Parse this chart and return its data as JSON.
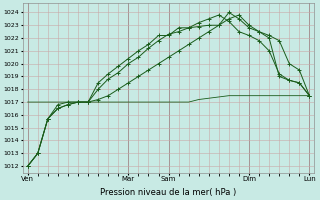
{
  "xlabel": "Pression niveau de la mer( hPa )",
  "bg_color": "#c8eae4",
  "grid_color_major": "#c8a8a8",
  "grid_color_minor": "#ddc8c8",
  "line_color": "#1a5c1a",
  "yticks": [
    1012,
    1013,
    1014,
    1015,
    1016,
    1017,
    1018,
    1019,
    1020,
    1021,
    1022,
    1023,
    1024
  ],
  "ylim": [
    1011.5,
    1024.7
  ],
  "series1_x": [
    0,
    1,
    2,
    3,
    4,
    5,
    6,
    7,
    8,
    9,
    10,
    11,
    12,
    13,
    14,
    15,
    16,
    17,
    18,
    19,
    20,
    21,
    22,
    23,
    24,
    25,
    26,
    27,
    28
  ],
  "series1_y": [
    1012.0,
    1013.0,
    1015.7,
    1016.5,
    1016.8,
    1017.0,
    1017.0,
    1018.5,
    1019.2,
    1019.8,
    1020.4,
    1021.0,
    1021.5,
    1022.2,
    1022.2,
    1022.8,
    1022.8,
    1022.9,
    1023.0,
    1023.0,
    1024.0,
    1023.5,
    1022.8,
    1022.5,
    1022.0,
    1019.0,
    1018.7,
    1018.5,
    1017.5
  ],
  "series2_x": [
    0,
    1,
    2,
    3,
    4,
    5,
    6,
    7,
    8,
    9,
    10,
    11,
    12,
    13,
    14,
    15,
    16,
    17,
    18,
    19,
    20,
    21,
    22,
    23,
    24,
    25,
    26,
    27,
    28
  ],
  "series2_y": [
    1012.0,
    1013.0,
    1015.7,
    1016.5,
    1016.8,
    1017.0,
    1017.0,
    1018.0,
    1018.8,
    1019.3,
    1020.0,
    1020.5,
    1021.2,
    1021.8,
    1022.3,
    1022.5,
    1022.8,
    1023.2,
    1023.5,
    1023.8,
    1023.3,
    1022.5,
    1022.2,
    1021.8,
    1021.0,
    1019.2,
    1018.7,
    1018.5,
    1017.5
  ],
  "series3_x": [
    0,
    1,
    2,
    3,
    4,
    5,
    6,
    7,
    8,
    9,
    10,
    11,
    12,
    13,
    14,
    15,
    16,
    17,
    18,
    19,
    20,
    21,
    22,
    23,
    24,
    25,
    26,
    27,
    28
  ],
  "series3_y": [
    1012.0,
    1013.0,
    1015.7,
    1016.8,
    1017.0,
    1017.0,
    1017.0,
    1017.2,
    1017.5,
    1018.0,
    1018.5,
    1019.0,
    1019.5,
    1020.0,
    1020.5,
    1021.0,
    1021.5,
    1022.0,
    1022.5,
    1023.0,
    1023.5,
    1023.8,
    1023.0,
    1022.5,
    1022.2,
    1021.8,
    1020.0,
    1019.5,
    1017.5
  ],
  "series4_x": [
    0,
    1,
    2,
    3,
    4,
    5,
    6,
    7,
    8,
    9,
    10,
    11,
    12,
    13,
    14,
    15,
    16,
    17,
    18,
    19,
    20,
    21,
    22,
    23,
    24,
    25,
    26,
    27,
    28
  ],
  "series4_y": [
    1017.0,
    1017.0,
    1017.0,
    1017.0,
    1017.0,
    1017.0,
    1017.0,
    1017.0,
    1017.0,
    1017.0,
    1017.0,
    1017.0,
    1017.0,
    1017.0,
    1017.0,
    1017.0,
    1017.0,
    1017.2,
    1017.3,
    1017.4,
    1017.5,
    1017.5,
    1017.5,
    1017.5,
    1017.5,
    1017.5,
    1017.5,
    1017.5,
    1017.5
  ],
  "vline_x": [
    0,
    10,
    14,
    22,
    28
  ],
  "xtick_pos": [
    0,
    10,
    14,
    22,
    28
  ],
  "xtick_labels": [
    "Ven",
    "Mar",
    "Sam",
    "Dim",
    "Lun"
  ]
}
